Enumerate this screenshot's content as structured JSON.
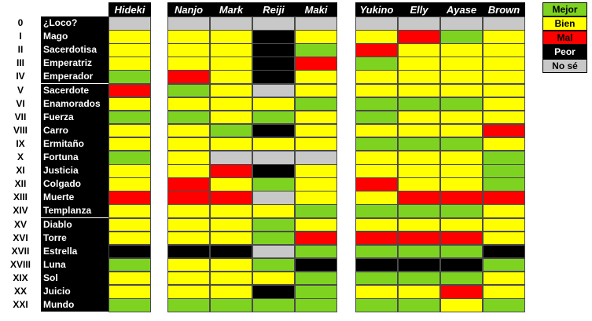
{
  "colors": {
    "G": "#7ed321",
    "Y": "#ffff00",
    "R": "#ff0000",
    "K": "#000000",
    "N": "#c8c8c8"
  },
  "headers": [
    "Hideki",
    "Nanjo",
    "Mark",
    "Reiji",
    "Maki",
    "Yukino",
    "Elly",
    "Ayase",
    "Brown"
  ],
  "arcana": [
    {
      "num": "0",
      "name": "¿Loco?"
    },
    {
      "num": "I",
      "name": "Mago"
    },
    {
      "num": "II",
      "name": "Sacerdotisa"
    },
    {
      "num": "III",
      "name": "Emperatriz"
    },
    {
      "num": "IV",
      "name": "Emperador"
    },
    {
      "num": "V",
      "name": "Sacerdote"
    },
    {
      "num": "VI",
      "name": "Enamorados"
    },
    {
      "num": "VII",
      "name": "Fuerza"
    },
    {
      "num": "VIII",
      "name": "Carro"
    },
    {
      "num": "IX",
      "name": "Ermitaño"
    },
    {
      "num": "X",
      "name": "Fortuna"
    },
    {
      "num": "XI",
      "name": "Justicia"
    },
    {
      "num": "XII",
      "name": "Colgado"
    },
    {
      "num": "XIII",
      "name": "Muerte"
    },
    {
      "num": "XIV",
      "name": "Templanza"
    },
    {
      "num": "XV",
      "name": "Diablo"
    },
    {
      "num": "XVI",
      "name": "Torre"
    },
    {
      "num": "XVII",
      "name": "Estrella"
    },
    {
      "num": "XVIII",
      "name": "Luna"
    },
    {
      "num": "XIX",
      "name": "Sol"
    },
    {
      "num": "XX",
      "name": "Juicio"
    },
    {
      "num": "XXI",
      "name": "Mundo"
    }
  ],
  "ratings": [
    [
      "N",
      "N",
      "N",
      "N",
      "N",
      "N",
      "N",
      "N",
      "N"
    ],
    [
      "Y",
      "Y",
      "Y",
      "K",
      "Y",
      "Y",
      "R",
      "G",
      "Y"
    ],
    [
      "Y",
      "Y",
      "Y",
      "K",
      "G",
      "R",
      "Y",
      "Y",
      "Y"
    ],
    [
      "Y",
      "Y",
      "Y",
      "K",
      "R",
      "G",
      "Y",
      "Y",
      "Y"
    ],
    [
      "G",
      "R",
      "Y",
      "K",
      "Y",
      "Y",
      "Y",
      "Y",
      "Y"
    ],
    [
      "R",
      "G",
      "Y",
      "N",
      "Y",
      "Y",
      "Y",
      "Y",
      "Y"
    ],
    [
      "Y",
      "Y",
      "Y",
      "Y",
      "G",
      "G",
      "G",
      "G",
      "Y"
    ],
    [
      "G",
      "G",
      "Y",
      "G",
      "Y",
      "G",
      "Y",
      "Y",
      "Y"
    ],
    [
      "Y",
      "Y",
      "G",
      "K",
      "Y",
      "Y",
      "Y",
      "Y",
      "R"
    ],
    [
      "Y",
      "Y",
      "Y",
      "Y",
      "Y",
      "G",
      "G",
      "G",
      "Y"
    ],
    [
      "G",
      "Y",
      "N",
      "N",
      "N",
      "Y",
      "Y",
      "Y",
      "G"
    ],
    [
      "Y",
      "Y",
      "R",
      "K",
      "Y",
      "Y",
      "Y",
      "Y",
      "G"
    ],
    [
      "Y",
      "R",
      "Y",
      "G",
      "Y",
      "R",
      "Y",
      "Y",
      "G"
    ],
    [
      "R",
      "R",
      "R",
      "N",
      "Y",
      "Y",
      "R",
      "R",
      "R"
    ],
    [
      "Y",
      "Y",
      "Y",
      "Y",
      "G",
      "G",
      "G",
      "G",
      "Y"
    ],
    [
      "Y",
      "Y",
      "Y",
      "G",
      "Y",
      "Y",
      "Y",
      "Y",
      "Y"
    ],
    [
      "Y",
      "Y",
      "Y",
      "G",
      "R",
      "R",
      "R",
      "R",
      "Y"
    ],
    [
      "K",
      "K",
      "K",
      "N",
      "G",
      "G",
      "G",
      "G",
      "K"
    ],
    [
      "G",
      "Y",
      "Y",
      "G",
      "K",
      "K",
      "K",
      "K",
      "G"
    ],
    [
      "Y",
      "Y",
      "Y",
      "Y",
      "G",
      "G",
      "G",
      "G",
      "Y"
    ],
    [
      "Y",
      "Y",
      "Y",
      "K",
      "G",
      "Y",
      "Y",
      "R",
      "Y"
    ],
    [
      "G",
      "G",
      "G",
      "G",
      "G",
      "G",
      "G",
      "Y",
      "G"
    ]
  ],
  "legend": [
    {
      "label": "Mejor",
      "color": "#7ed321",
      "text": "#000000"
    },
    {
      "label": "Bien",
      "color": "#ffff00",
      "text": "#000000"
    },
    {
      "label": "Mal",
      "color": "#ff0000",
      "text": "#000000"
    },
    {
      "label": "Peor",
      "color": "#000000",
      "text": "#ffffff"
    },
    {
      "label": "No sé",
      "color": "#c8c8c8",
      "text": "#000000"
    }
  ]
}
